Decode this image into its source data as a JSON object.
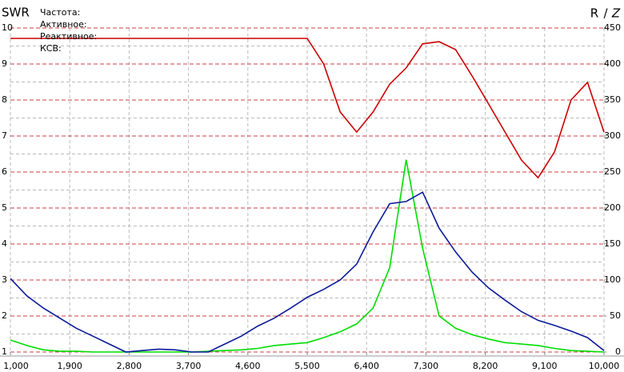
{
  "chart_data": {
    "type": "line",
    "info_labels": [
      "Частота:",
      "Активное:",
      "Реактивное:",
      "КСВ:"
    ],
    "y2_label_separator": "/",
    "x": [
      1000,
      1250,
      1500,
      1750,
      2000,
      2250,
      2500,
      2750,
      3000,
      3250,
      3500,
      3750,
      4000,
      4250,
      4500,
      4750,
      5000,
      5250,
      5500,
      5750,
      6000,
      6250,
      6500,
      6750,
      7000,
      7250,
      7500,
      7750,
      8000,
      8250,
      8500,
      8750,
      9000,
      9250,
      9500,
      9750,
      10000
    ],
    "xlim": [
      1000,
      10000
    ],
    "xticks": [
      {
        "value": 1000,
        "label": "1,000"
      },
      {
        "value": 1900,
        "label": "1,900"
      },
      {
        "value": 2800,
        "label": "2,800"
      },
      {
        "value": 3700,
        "label": "3,700"
      },
      {
        "value": 4600,
        "label": "4,600"
      },
      {
        "value": 5500,
        "label": "5,500"
      },
      {
        "value": 6400,
        "label": "6,400"
      },
      {
        "value": 7300,
        "label": "7,300"
      },
      {
        "value": 8200,
        "label": "8,200"
      },
      {
        "value": 9100,
        "label": "9,100"
      },
      {
        "value": 10000,
        "label": "10,000"
      }
    ],
    "ylim": [
      1,
      10
    ],
    "yticks": [
      1,
      2,
      3,
      4,
      5,
      6,
      7,
      8,
      9,
      10
    ],
    "y2lim": [
      0,
      450
    ],
    "y2ticks": [
      0,
      50,
      100,
      150,
      200,
      250,
      300,
      350,
      400,
      450
    ],
    "grid": true,
    "series": [
      {
        "name": "SWR",
        "color": "#cc0000",
        "axis": "y",
        "values": [
          9.71,
          9.71,
          9.71,
          9.71,
          9.71,
          9.71,
          9.71,
          9.71,
          9.71,
          9.71,
          9.71,
          9.71,
          9.71,
          9.71,
          9.71,
          9.71,
          9.71,
          9.71,
          9.71,
          9.0,
          7.67,
          7.11,
          7.67,
          8.44,
          8.89,
          9.56,
          9.62,
          9.4,
          8.67,
          7.89,
          7.11,
          6.33,
          5.84,
          6.56,
          8.0,
          8.49,
          7.11
        ]
      },
      {
        "name": "R",
        "color": "#00dd00",
        "axis": "y2",
        "values": [
          16.7,
          9,
          3,
          1,
          1,
          0,
          0,
          0,
          0,
          0,
          0,
          0,
          1,
          2,
          3,
          5,
          9,
          11,
          13,
          20,
          28,
          39,
          61,
          117,
          267,
          144,
          50,
          33,
          24,
          18,
          13,
          11,
          9,
          5,
          2,
          1,
          0
        ]
      },
      {
        "name": "Z",
        "color": "#0a1a99",
        "axis": "y2",
        "values": [
          102,
          78,
          61,
          47,
          33,
          22,
          11,
          0,
          2,
          4,
          3,
          0,
          0,
          11,
          22,
          36,
          47,
          61,
          76,
          87,
          100,
          122,
          167,
          206,
          209,
          222,
          172,
          139,
          111,
          89,
          72,
          56,
          44,
          37,
          29,
          20,
          2
        ]
      }
    ]
  }
}
